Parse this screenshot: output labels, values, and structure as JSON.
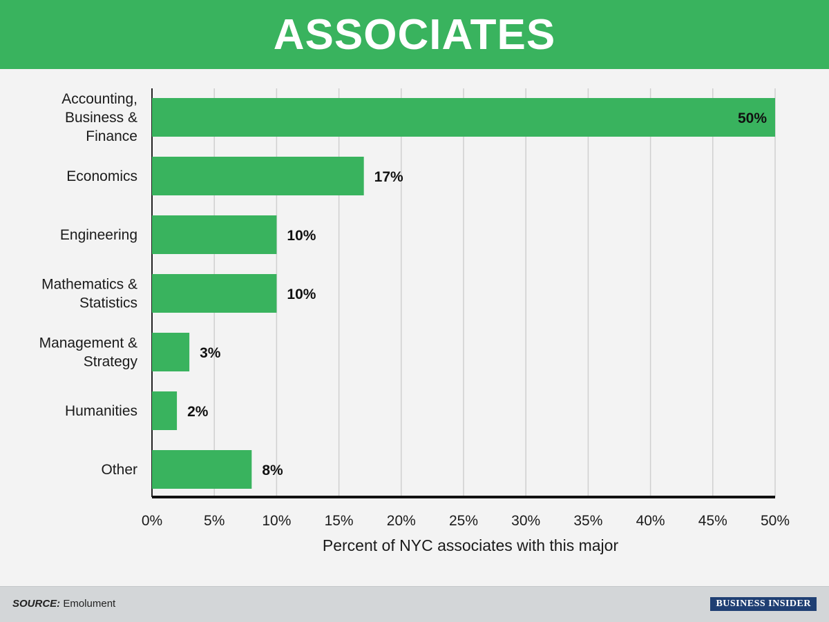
{
  "header": {
    "title": "ASSOCIATES"
  },
  "chart_data": {
    "type": "bar",
    "orientation": "horizontal",
    "categories": [
      [
        "Accounting,",
        "Business &",
        "Finance"
      ],
      [
        "Economics"
      ],
      [
        "Engineering"
      ],
      [
        "Mathematics &",
        "Statistics"
      ],
      [
        "Management &",
        "Strategy"
      ],
      [
        "Humanities"
      ],
      [
        "Other"
      ]
    ],
    "values": [
      50,
      17,
      10,
      10,
      3,
      2,
      8
    ],
    "value_labels": [
      "50%",
      "17%",
      "10%",
      "10%",
      "3%",
      "2%",
      "8%"
    ],
    "xlim": [
      0,
      50
    ],
    "x_ticks": [
      0,
      5,
      10,
      15,
      20,
      25,
      30,
      35,
      40,
      45,
      50
    ],
    "x_tick_labels": [
      "0%",
      "5%",
      "10%",
      "15%",
      "20%",
      "25%",
      "30%",
      "35%",
      "40%",
      "45%",
      "50%"
    ],
    "xlabel": "Percent of NYC associates with this major",
    "grid": "vertical",
    "bar_color": "#39b35e"
  },
  "footer": {
    "source_label": "SOURCE:",
    "source_value": "Emolument",
    "brand": "BUSINESS INSIDER"
  },
  "colors": {
    "header_bg": "#39b35e",
    "bar": "#39b35e",
    "background": "#f3f3f3",
    "footer_bg": "#d3d6d8",
    "brand_bg": "#1f3f73"
  }
}
